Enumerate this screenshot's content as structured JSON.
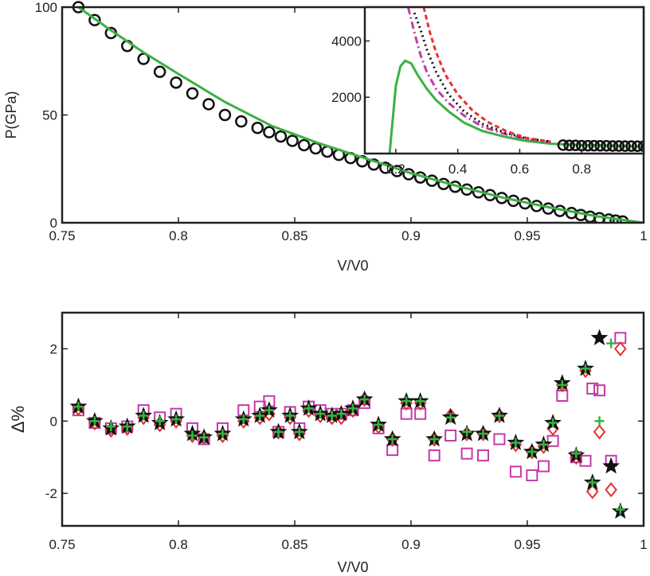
{
  "chart_data": [
    {
      "id": "top",
      "type": "line",
      "xlabel": "V/V0",
      "ylabel": "P(GPa)",
      "xlim": [
        0.75,
        1.0
      ],
      "ylim": [
        0,
        100
      ],
      "xticks": [
        "0.75",
        "0.8",
        "0.85",
        "0.9",
        "0.95",
        "1"
      ],
      "xtick_values": [
        0.75,
        0.8,
        0.85,
        0.9,
        0.95,
        1.0
      ],
      "yticks": [
        "0",
        "50",
        "100"
      ],
      "ytick_values": [
        0,
        50,
        100
      ],
      "series": [
        {
          "style": "circles",
          "color": "#111111",
          "x": [
            0.757,
            0.764,
            0.771,
            0.778,
            0.785,
            0.792,
            0.799,
            0.806,
            0.813,
            0.82,
            0.827,
            0.834,
            0.839,
            0.844,
            0.849,
            0.854,
            0.859,
            0.864,
            0.869,
            0.874,
            0.879,
            0.884,
            0.889,
            0.894,
            0.899,
            0.904,
            0.909,
            0.914,
            0.919,
            0.924,
            0.929,
            0.934,
            0.939,
            0.944,
            0.949,
            0.954,
            0.959,
            0.964,
            0.969,
            0.973,
            0.977,
            0.981,
            0.985,
            0.988,
            0.991
          ],
          "y": [
            100,
            94,
            88,
            82,
            76,
            70,
            65,
            60,
            55,
            50,
            47,
            44,
            42,
            40,
            38,
            36,
            34.5,
            33,
            31.5,
            30,
            28.5,
            27,
            25.5,
            24,
            22.5,
            21,
            19.5,
            18,
            16.7,
            15.4,
            14.1,
            12.8,
            11.5,
            10.2,
            9,
            7.8,
            6.6,
            5.5,
            4.5,
            3.6,
            2.8,
            2.1,
            1.5,
            1.0,
            0.6
          ]
        },
        {
          "style": "line",
          "color": "#3cb043",
          "x": [
            0.757,
            0.77,
            0.785,
            0.8,
            0.82,
            0.84,
            0.86,
            0.88,
            0.9,
            0.92,
            0.94,
            0.96,
            0.98,
            1.0
          ],
          "y": [
            100,
            90,
            79,
            69,
            56,
            45,
            37,
            30,
            23,
            17,
            11.5,
            7,
            3,
            0
          ]
        }
      ]
    },
    {
      "id": "inset",
      "type": "line",
      "xlim": [
        0.1,
        1.0
      ],
      "ylim": [
        0,
        5200
      ],
      "xticks": [
        "0.2",
        "0.4",
        "0.6",
        "0.8"
      ],
      "xtick_values": [
        0.2,
        0.4,
        0.6,
        0.8
      ],
      "yticks": [
        "2000",
        "4000"
      ],
      "ytick_values": [
        2000,
        4000
      ],
      "series": [
        {
          "style": "line",
          "color": "#3cb043",
          "x": [
            0.18,
            0.19,
            0.2,
            0.215,
            0.23,
            0.25,
            0.27,
            0.3,
            0.33,
            0.37,
            0.42,
            0.48,
            0.55,
            0.62,
            0.7,
            0.8,
            0.9,
            1.0
          ],
          "y": [
            0,
            1200,
            2400,
            3100,
            3300,
            3200,
            2800,
            2300,
            1900,
            1500,
            1100,
            800,
            600,
            450,
            350,
            300,
            280,
            250
          ]
        },
        {
          "style": "dash-dot",
          "color": "#c43aa8",
          "x": [
            0.24,
            0.26,
            0.28,
            0.3,
            0.33,
            0.37,
            0.42,
            0.48,
            0.55,
            0.62,
            0.7
          ],
          "y": [
            5200,
            4300,
            3500,
            2900,
            2300,
            1800,
            1350,
            950,
            700,
            520,
            400
          ]
        },
        {
          "style": "dotted",
          "color": "#111111",
          "x": [
            0.26,
            0.28,
            0.3,
            0.33,
            0.37,
            0.42,
            0.48,
            0.55,
            0.62,
            0.7
          ],
          "y": [
            5000,
            4400,
            3700,
            2900,
            2100,
            1500,
            1050,
            750,
            540,
            420
          ]
        },
        {
          "style": "dashed",
          "color": "#e53030",
          "x": [
            0.29,
            0.31,
            0.33,
            0.36,
            0.4,
            0.45,
            0.5,
            0.56,
            0.62,
            0.7
          ],
          "y": [
            5200,
            4300,
            3600,
            2800,
            2100,
            1500,
            1100,
            780,
            560,
            420
          ]
        },
        {
          "style": "circles",
          "color": "#111111",
          "x": [
            0.74,
            0.76,
            0.78,
            0.8,
            0.82,
            0.84,
            0.86,
            0.88,
            0.9,
            0.92,
            0.94,
            0.96,
            0.98,
            1.0
          ],
          "y": [
            300,
            290,
            290,
            280,
            280,
            280,
            275,
            275,
            270,
            270,
            265,
            265,
            260,
            260
          ]
        }
      ]
    },
    {
      "id": "bottom",
      "type": "scatter",
      "xlabel": "V/V0",
      "ylabel": "Δ%",
      "xlim": [
        0.75,
        1.0
      ],
      "ylim": [
        -2.9,
        3.0
      ],
      "xticks": [
        "0.75",
        "0.8",
        "0.85",
        "0.9",
        "0.95",
        "1"
      ],
      "xtick_values": [
        0.75,
        0.8,
        0.85,
        0.9,
        0.95,
        1.0
      ],
      "yticks": [
        "-2",
        "0",
        "2"
      ],
      "ytick_values": [
        -2,
        0,
        2
      ],
      "x": [
        0.757,
        0.764,
        0.771,
        0.778,
        0.785,
        0.792,
        0.799,
        0.806,
        0.811,
        0.819,
        0.828,
        0.835,
        0.839,
        0.843,
        0.848,
        0.852,
        0.856,
        0.861,
        0.866,
        0.87,
        0.875,
        0.88,
        0.886,
        0.892,
        0.898,
        0.904,
        0.91,
        0.917,
        0.924,
        0.931,
        0.938,
        0.945,
        0.952,
        0.957,
        0.961,
        0.965,
        0.971,
        0.975,
        0.978,
        0.981,
        0.986,
        0.99
      ],
      "series": [
        {
          "marker": "square",
          "color": "#c43aa8",
          "y": [
            0.3,
            -0.05,
            -0.2,
            -0.15,
            0.3,
            0.1,
            0.2,
            -0.2,
            -0.5,
            -0.2,
            0.3,
            0.4,
            0.55,
            -0.3,
            0.25,
            -0.2,
            0.4,
            0.3,
            0.2,
            0.2,
            0.3,
            0.5,
            -0.2,
            -0.8,
            0.2,
            0.2,
            -0.95,
            -0.4,
            -0.9,
            -0.95,
            -0.5,
            -1.4,
            -1.5,
            -1.25,
            -0.55,
            0.7,
            -1.0,
            -1.1,
            0.9,
            0.85,
            -1.1,
            2.3
          ]
        },
        {
          "marker": "diamond",
          "color": "#e53030",
          "y": [
            0.35,
            -0.05,
            -0.25,
            -0.2,
            0.1,
            -0.1,
            0.0,
            -0.4,
            -0.45,
            -0.4,
            0.0,
            0.1,
            0.2,
            -0.3,
            0.1,
            -0.35,
            0.3,
            0.15,
            0.1,
            0.1,
            0.3,
            0.6,
            -0.15,
            -0.5,
            0.5,
            0.5,
            -0.5,
            0.15,
            -0.35,
            -0.35,
            0.15,
            -0.65,
            -0.85,
            -0.7,
            -0.2,
            1.0,
            -1.0,
            1.4,
            -1.95,
            -0.3,
            -1.9,
            2.0
          ]
        },
        {
          "marker": "star",
          "color": "#111111",
          "y": [
            0.4,
            0.0,
            -0.2,
            -0.15,
            0.15,
            -0.05,
            0.05,
            -0.35,
            -0.45,
            -0.35,
            0.05,
            0.15,
            0.3,
            -0.3,
            0.15,
            -0.3,
            0.35,
            0.2,
            0.15,
            0.2,
            0.35,
            0.6,
            -0.1,
            -0.5,
            0.55,
            0.55,
            -0.5,
            0.1,
            -0.35,
            -0.35,
            0.15,
            -0.6,
            -0.85,
            -0.65,
            -0.05,
            1.05,
            -0.95,
            1.45,
            -1.7,
            2.3,
            -1.25,
            -2.5
          ]
        },
        {
          "marker": "plus",
          "color": "#3cb043",
          "y": [
            0.4,
            0.0,
            -0.15,
            -0.15,
            0.15,
            0.0,
            0.05,
            -0.4,
            -0.45,
            -0.35,
            0.05,
            0.15,
            0.3,
            -0.3,
            0.15,
            -0.3,
            0.35,
            0.2,
            0.15,
            0.2,
            0.35,
            0.6,
            -0.1,
            -0.5,
            0.55,
            0.55,
            -0.5,
            0.1,
            -0.3,
            -0.35,
            0.15,
            -0.6,
            -0.85,
            -0.65,
            -0.05,
            1.0,
            -0.9,
            1.45,
            -1.7,
            0.0,
            2.15,
            -2.45
          ]
        }
      ]
    }
  ]
}
